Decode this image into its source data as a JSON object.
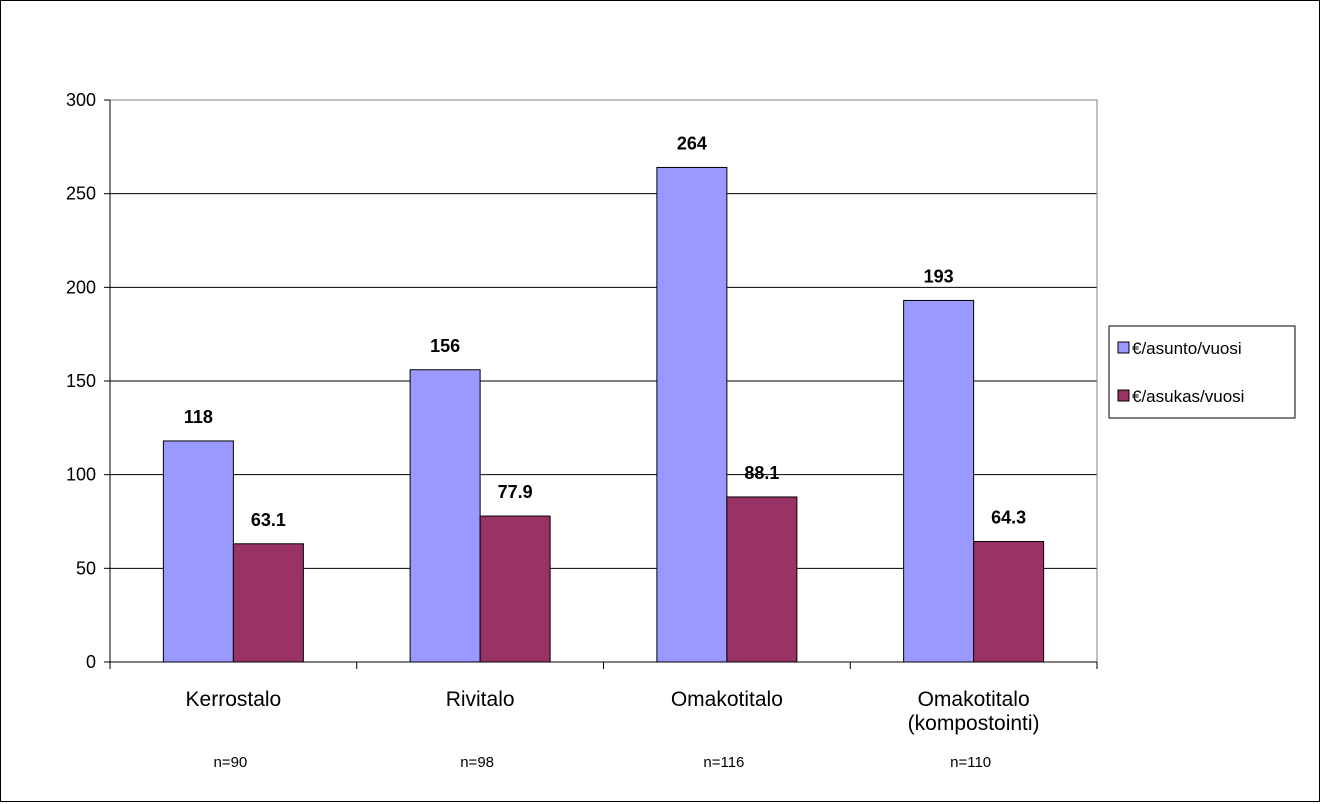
{
  "chart_data": {
    "type": "bar",
    "categories": [
      [
        "Kerrostalo"
      ],
      [
        "Rivitalo"
      ],
      [
        "Omakotitalo"
      ],
      [
        "Omakotitalo",
        "(kompostointi)"
      ]
    ],
    "sample_sizes": [
      "n=90",
      "n=98",
      "n=116",
      "n=110"
    ],
    "series": [
      {
        "name": "€/asunto/vuosi",
        "values": [
          118,
          156,
          264,
          193
        ],
        "labels": [
          "118",
          "156",
          "264",
          "193"
        ],
        "color": "#9999ff"
      },
      {
        "name": "€/asukas/vuosi",
        "values": [
          63.1,
          77.9,
          88.1,
          64.3
        ],
        "labels": [
          "63.1",
          "77.9",
          "88.1",
          "64.3"
        ],
        "color": "#993366"
      }
    ],
    "ylim": [
      0,
      300
    ],
    "yticks": [
      0,
      50,
      100,
      150,
      200,
      250,
      300
    ],
    "grid": true,
    "legend_position": "right",
    "title": "",
    "xlabel": "",
    "ylabel": ""
  }
}
